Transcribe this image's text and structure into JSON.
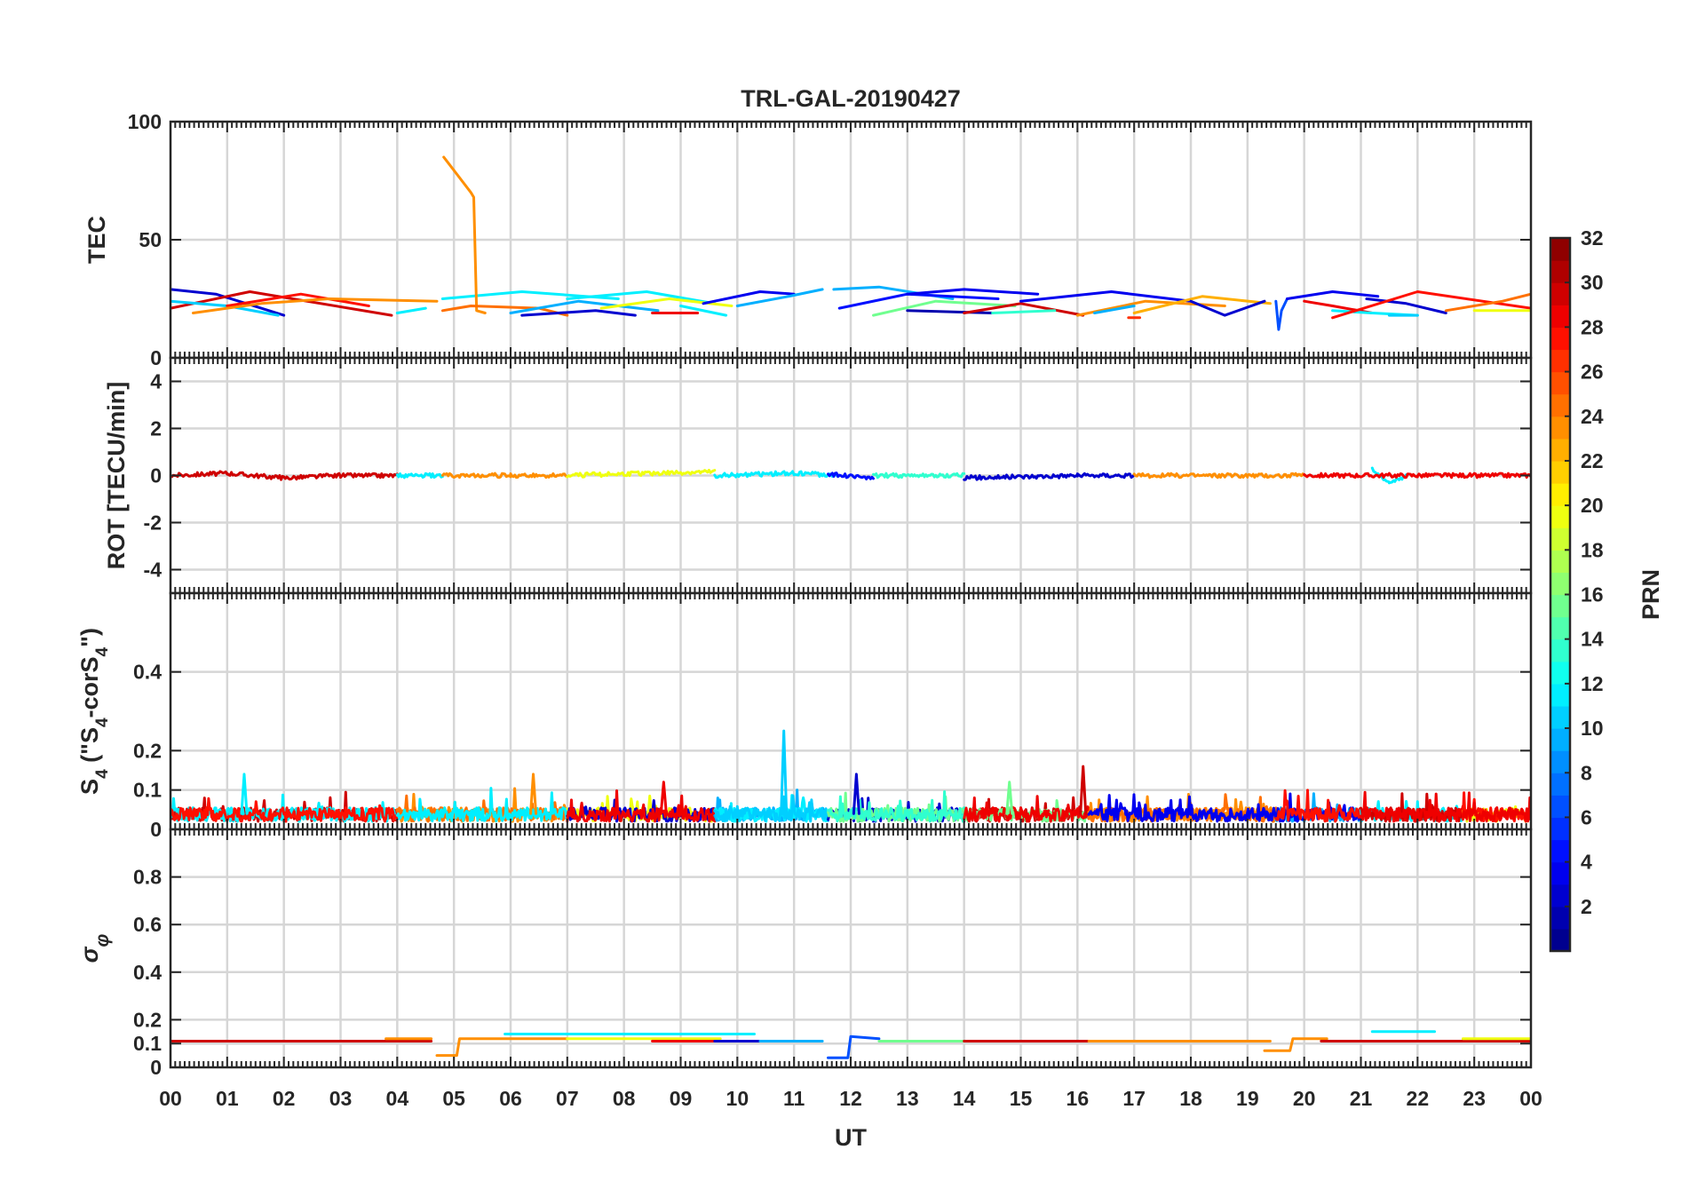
{
  "chart_data": {
    "type": "line",
    "title": "TRL-GAL-20190427",
    "xlabel": "UT",
    "xlim": [
      0,
      24
    ],
    "x_tick_labels": [
      "00",
      "01",
      "02",
      "03",
      "04",
      "05",
      "06",
      "07",
      "08",
      "09",
      "10",
      "11",
      "12",
      "13",
      "14",
      "15",
      "16",
      "17",
      "18",
      "19",
      "20",
      "21",
      "22",
      "23",
      "00"
    ],
    "colorbar": {
      "label": "PRN",
      "colormap": "jet",
      "range": [
        1,
        32
      ],
      "tick_values": [
        2,
        4,
        6,
        8,
        10,
        12,
        14,
        16,
        18,
        20,
        22,
        24,
        26,
        28,
        30,
        32
      ],
      "tick_labels": [
        "2",
        "4",
        "6",
        "8",
        "10",
        "12",
        "14",
        "16",
        "18",
        "20",
        "22",
        "24",
        "26",
        "28",
        "30",
        "32"
      ]
    },
    "panels": [
      {
        "id": "tec",
        "ylabel": "TEC",
        "ylim": [
          0,
          100
        ],
        "ytick_values": [
          0,
          50,
          100
        ],
        "ytick_labels": [
          "0",
          "50",
          "100"
        ],
        "series": [
          {
            "prn": 3,
            "x": [
              0.0,
              0.8,
              2.0
            ],
            "y": [
              29,
              27,
              18
            ]
          },
          {
            "prn": 30,
            "x": [
              0.0,
              1.4,
              3.9
            ],
            "y": [
              21,
              28,
              18
            ]
          },
          {
            "prn": 11,
            "x": [
              0.0,
              1.0,
              1.9
            ],
            "y": [
              24,
              22,
              18
            ]
          },
          {
            "prn": 28,
            "x": [
              1.0,
              2.3,
              3.5
            ],
            "y": [
              22,
              27,
              22
            ]
          },
          {
            "prn": 24,
            "x": [
              0.4,
              1.6,
              2.8,
              4.7
            ],
            "y": [
              19,
              23,
              25,
              24
            ]
          },
          {
            "prn": 12,
            "x": [
              4.0,
              4.5
            ],
            "y": [
              19,
              21
            ]
          },
          {
            "prn": 12,
            "x": [
              4.8,
              6.2,
              7.9
            ],
            "y": [
              25,
              28,
              25
            ]
          },
          {
            "prn": 24,
            "x": [
              4.82,
              5.3,
              5.35,
              5.4,
              5.55
            ],
            "y": [
              85,
              70,
              68,
              20,
              19
            ]
          },
          {
            "prn": 25,
            "x": [
              4.8,
              5.3,
              6.5,
              7.0
            ],
            "y": [
              20,
              22,
              21,
              18
            ]
          },
          {
            "prn": 10,
            "x": [
              6.0,
              7.2,
              8.6
            ],
            "y": [
              19,
              24,
              20
            ]
          },
          {
            "prn": 12,
            "x": [
              7.0,
              8.4,
              9.6
            ],
            "y": [
              25,
              28,
              23
            ]
          },
          {
            "prn": 3,
            "x": [
              6.2,
              7.5,
              8.2
            ],
            "y": [
              18,
              20,
              18
            ]
          },
          {
            "prn": 20,
            "x": [
              7.6,
              8.8,
              9.9
            ],
            "y": [
              21,
              25,
              22
            ]
          },
          {
            "prn": 29,
            "x": [
              8.5,
              9.3
            ],
            "y": [
              19,
              19
            ]
          },
          {
            "prn": 12,
            "x": [
              9.0,
              9.8
            ],
            "y": [
              22,
              18
            ]
          },
          {
            "prn": 4,
            "x": [
              9.4,
              10.4,
              11.0
            ],
            "y": [
              23,
              28,
              27
            ]
          },
          {
            "prn": 10,
            "x": [
              10.0,
              10.9,
              11.5
            ],
            "y": [
              22,
              26,
              29
            ]
          },
          {
            "prn": 10,
            "x": [
              11.7,
              12.5,
              13.8
            ],
            "y": [
              29,
              30,
              25
            ]
          },
          {
            "prn": 5,
            "x": [
              11.8,
              13.0,
              14.6
            ],
            "y": [
              21,
              27,
              25
            ]
          },
          {
            "prn": 4,
            "x": [
              13.0,
              14.0,
              15.3
            ],
            "y": [
              27,
              29,
              27
            ]
          },
          {
            "prn": 16,
            "x": [
              12.4,
              13.5,
              14.9
            ],
            "y": [
              18,
              24,
              22
            ]
          },
          {
            "prn": 2,
            "x": [
              13.0,
              14.5
            ],
            "y": [
              20,
              19
            ]
          },
          {
            "prn": 30,
            "x": [
              14.0,
              15.0,
              16.1
            ],
            "y": [
              19,
              23,
              18
            ]
          },
          {
            "prn": 14,
            "x": [
              14.5,
              15.6
            ],
            "y": [
              19,
              20
            ]
          },
          {
            "prn": 4,
            "x": [
              15.0,
              16.6,
              18.0
            ],
            "y": [
              24,
              28,
              24
            ]
          },
          {
            "prn": 24,
            "x": [
              16.0,
              17.2,
              18.6
            ],
            "y": [
              18,
              24,
              22
            ]
          },
          {
            "prn": 27,
            "x": [
              16.9,
              17.1
            ],
            "y": [
              17,
              17
            ]
          },
          {
            "prn": 10,
            "x": [
              16.3,
              17.0
            ],
            "y": [
              19,
              22
            ]
          },
          {
            "prn": 23,
            "x": [
              17.0,
              18.2,
              19.4
            ],
            "y": [
              19,
              26,
              23
            ]
          },
          {
            "prn": 3,
            "x": [
              18.0,
              18.6,
              19.3
            ],
            "y": [
              24,
              18,
              24
            ]
          },
          {
            "prn": 7,
            "x": [
              19.5,
              19.55,
              19.6,
              19.7
            ],
            "y": [
              24,
              12,
              20,
              25
            ]
          },
          {
            "prn": 4,
            "x": [
              19.7,
              20.5,
              21.3
            ],
            "y": [
              25,
              28,
              26
            ]
          },
          {
            "prn": 29,
            "x": [
              20.0,
              20.5,
              21.2
            ],
            "y": [
              24,
              22,
              19
            ]
          },
          {
            "prn": 12,
            "x": [
              20.5,
              21.2,
              22.0
            ],
            "y": [
              20,
              19,
              18
            ]
          },
          {
            "prn": 11,
            "x": [
              21.5,
              22.0
            ],
            "y": [
              18,
              18
            ]
          },
          {
            "prn": 3,
            "x": [
              21.1,
              21.8,
              22.5
            ],
            "y": [
              25,
              23,
              19
            ]
          },
          {
            "prn": 28,
            "x": [
              20.5,
              22.0,
              24.0
            ],
            "y": [
              17,
              28,
              21
            ]
          },
          {
            "prn": 25,
            "x": [
              22.5,
              23.5,
              24.0
            ],
            "y": [
              20,
              24,
              27
            ]
          },
          {
            "prn": 20,
            "x": [
              23.0,
              24.0
            ],
            "y": [
              20,
              20
            ]
          }
        ]
      },
      {
        "id": "rot",
        "ylabel": "ROT [TECU/min]",
        "ylim": [
          -5,
          5
        ],
        "ytick_values": [
          -4,
          -2,
          0,
          2,
          4
        ],
        "ytick_labels": [
          "-4",
          "-2",
          "0",
          "2",
          "4"
        ],
        "series": [
          {
            "prn": 30,
            "x": [
              0,
              1,
              2,
              3,
              4
            ],
            "y": [
              0,
              0.1,
              -0.1,
              0,
              0
            ]
          },
          {
            "prn": 12,
            "x": [
              4,
              4.8
            ],
            "y": [
              0,
              0
            ]
          },
          {
            "prn": 24,
            "x": [
              4.8,
              6,
              7
            ],
            "y": [
              0,
              0,
              0
            ]
          },
          {
            "prn": 20,
            "x": [
              7,
              8.5,
              9.6
            ],
            "y": [
              0,
              0.1,
              0.15
            ]
          },
          {
            "prn": 12,
            "x": [
              9.6,
              11,
              11.8
            ],
            "y": [
              0,
              0.1,
              0
            ]
          },
          {
            "prn": 5,
            "x": [
              11.6,
              12.4
            ],
            "y": [
              0.05,
              -0.1
            ]
          },
          {
            "prn": 14,
            "x": [
              12.4,
              14
            ],
            "y": [
              0,
              0
            ]
          },
          {
            "prn": 3,
            "x": [
              14,
              16,
              17
            ],
            "y": [
              -0.1,
              0,
              0
            ]
          },
          {
            "prn": 24,
            "x": [
              17,
              19,
              20
            ],
            "y": [
              0,
              0,
              0
            ]
          },
          {
            "prn": 12,
            "x": [
              21.2,
              21.5,
              21.8
            ],
            "y": [
              0.3,
              -0.3,
              0
            ]
          },
          {
            "prn": 29,
            "x": [
              20,
              22,
              24
            ],
            "y": [
              0,
              0,
              0
            ]
          }
        ]
      },
      {
        "id": "s4",
        "ylabel_parts": [
          "S",
          "4",
          " (\"S",
          "4",
          "-corS",
          "4",
          "\")"
        ],
        "ylim": [
          0,
          0.6
        ],
        "ytick_values": [
          0,
          0.1,
          0.2,
          0.4
        ],
        "ytick_labels": [
          "0",
          "0.1",
          "0.2",
          "0.4"
        ],
        "spikes": [
          {
            "prn": 11,
            "x": 10.82,
            "y": 0.25
          },
          {
            "prn": 30,
            "x": 16.1,
            "y": 0.16
          },
          {
            "prn": 24,
            "x": 6.4,
            "y": 0.14
          },
          {
            "prn": 12,
            "x": 1.3,
            "y": 0.14
          },
          {
            "prn": 3,
            "x": 12.1,
            "y": 0.14
          },
          {
            "prn": 16,
            "x": 14.8,
            "y": 0.12
          },
          {
            "prn": 29,
            "x": 8.7,
            "y": 0.12
          }
        ]
      },
      {
        "id": "sigma",
        "ylabel": "σφ",
        "ylim": [
          0,
          1
        ],
        "ytick_values": [
          0,
          0.1,
          0.2,
          0.4,
          0.6,
          0.8
        ],
        "ytick_labels": [
          "0",
          "0.1",
          "0.2",
          "0.4",
          "0.6",
          "0.8"
        ],
        "series": [
          {
            "prn": 30,
            "x": [
              0,
              4.6
            ],
            "y": [
              0.11,
              0.11
            ]
          },
          {
            "prn": 24,
            "x": [
              3.8,
              4.6
            ],
            "y": [
              0.12,
              0.12
            ]
          },
          {
            "prn": 24,
            "x": [
              4.7,
              5.05,
              5.1,
              7.0
            ],
            "y": [
              0.05,
              0.05,
              0.12,
              0.12
            ]
          },
          {
            "prn": 12,
            "x": [
              5.9,
              8.0,
              10.3
            ],
            "y": [
              0.14,
              0.14,
              0.14
            ]
          },
          {
            "prn": 20,
            "x": [
              7.0,
              9.0,
              9.7
            ],
            "y": [
              0.12,
              0.12,
              0.12
            ]
          },
          {
            "prn": 29,
            "x": [
              8.5,
              9.6
            ],
            "y": [
              0.11,
              0.11
            ]
          },
          {
            "prn": 3,
            "x": [
              9.6,
              10.6
            ],
            "y": [
              0.11,
              0.11
            ]
          },
          {
            "prn": 10,
            "x": [
              10.4,
              11.5
            ],
            "y": [
              0.11,
              0.11
            ]
          },
          {
            "prn": 7,
            "x": [
              11.6,
              11.95,
              12.0,
              12.5
            ],
            "y": [
              0.04,
              0.04,
              0.13,
              0.12
            ]
          },
          {
            "prn": 16,
            "x": [
              12.5,
              14.0
            ],
            "y": [
              0.11,
              0.11
            ]
          },
          {
            "prn": 30,
            "x": [
              14.0,
              16.2
            ],
            "y": [
              0.11,
              0.11
            ]
          },
          {
            "prn": 24,
            "x": [
              16.2,
              19.4
            ],
            "y": [
              0.11,
              0.11
            ]
          },
          {
            "prn": 24,
            "x": [
              19.3,
              19.75,
              19.8,
              20.4
            ],
            "y": [
              0.07,
              0.07,
              0.12,
              0.12
            ]
          },
          {
            "prn": 30,
            "x": [
              20.3,
              24.0
            ],
            "y": [
              0.11,
              0.11
            ]
          },
          {
            "prn": 12,
            "x": [
              21.2,
              22.3
            ],
            "y": [
              0.15,
              0.15
            ]
          },
          {
            "prn": 20,
            "x": [
              22.8,
              24.0
            ],
            "y": [
              0.12,
              0.12
            ]
          }
        ]
      }
    ]
  }
}
